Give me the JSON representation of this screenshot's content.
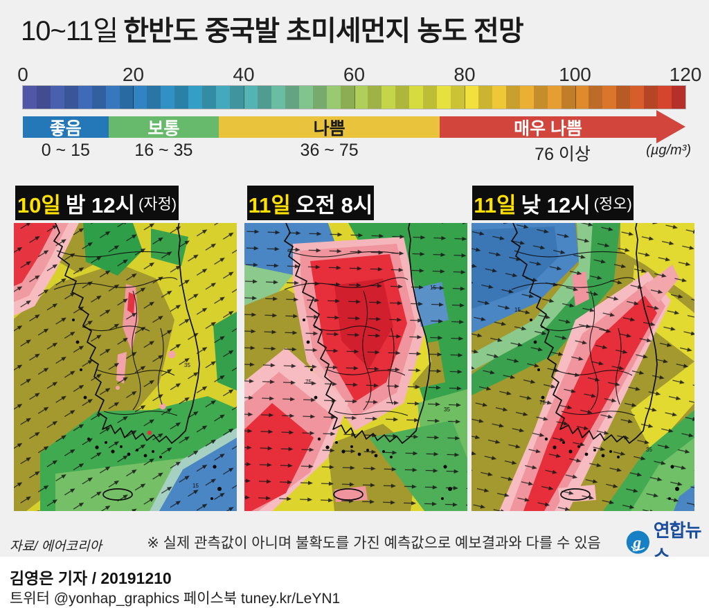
{
  "title": {
    "prefix": "10~11일",
    "main": "한반도 중국발 초미세먼지 농도 전망"
  },
  "scale": {
    "ticks": [
      "0",
      "20",
      "40",
      "60",
      "80",
      "100",
      "120"
    ],
    "max": 120,
    "cells": 48,
    "stops": [
      {
        "v": 0,
        "c": "#504f9c"
      },
      {
        "v": 10,
        "c": "#3e61ab"
      },
      {
        "v": 20,
        "c": "#2d79b7"
      },
      {
        "v": 30,
        "c": "#2f93bb"
      },
      {
        "v": 40,
        "c": "#4aa7ad"
      },
      {
        "v": 50,
        "c": "#74b88d"
      },
      {
        "v": 60,
        "c": "#a2c258"
      },
      {
        "v": 70,
        "c": "#c6cd3d"
      },
      {
        "v": 80,
        "c": "#e5d93a"
      },
      {
        "v": 90,
        "c": "#dfab31"
      },
      {
        "v": 100,
        "c": "#d5872c"
      },
      {
        "v": 110,
        "c": "#cb5f27"
      },
      {
        "v": 120,
        "c": "#c72f2e"
      }
    ],
    "categories": [
      {
        "label": "좋음",
        "range": "0 ~ 15",
        "span": 15.5,
        "color": "#2578b7",
        "text": "#ffffff",
        "arrow": false
      },
      {
        "label": "보통",
        "range": "16 ~ 35",
        "span": 20,
        "color": "#67ba6b",
        "text": "#ffffff",
        "arrow": false
      },
      {
        "label": "나쁨",
        "range": "36 ~ 75",
        "span": 40,
        "color": "#eac33d",
        "text": "#1a1a1a",
        "arrow": false
      },
      {
        "label": "매우 나쁨",
        "range": "76 이상",
        "span": 44.5,
        "color": "#d2453c",
        "text": "#ffffff",
        "arrow": true
      }
    ],
    "unit": "(µg/m³)"
  },
  "panels": [
    {
      "day": "10일",
      "time": "밤 12시",
      "suffix": "(자정)"
    },
    {
      "day": "11일",
      "time": "오전 8시",
      "suffix": ""
    },
    {
      "day": "11일",
      "time": "낮 12시",
      "suffix": "(정오)"
    }
  ],
  "map_labels": {
    "l15": "15",
    "l35": "35",
    "l75": "75"
  },
  "footer": {
    "source": "자료/ 에어코리아",
    "note": "※ 실제 관측값이 아니며 불확도를 가진 예측값으로 예보결과와 다를 수 있음",
    "logo": "연합뉴스"
  },
  "credits": {
    "byline": "김영은 기자 / 20191210",
    "social": "트위터 @yonhap_graphics  페이스북 tuney.kr/LeYN1"
  }
}
